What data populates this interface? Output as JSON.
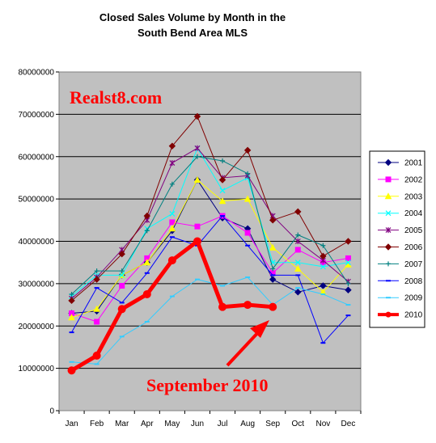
{
  "chart_data": {
    "type": "line",
    "title_line1": "Closed Sales Volume by Month in the",
    "title_line2": "South Bend Area MLS",
    "xlabel": "",
    "ylabel": "",
    "categories": [
      "Jan",
      "Feb",
      "Mar",
      "Apr",
      "May",
      "Jun",
      "Jul",
      "Aug",
      "Sep",
      "Oct",
      "Nov",
      "Dec"
    ],
    "y_ticks": [
      "0",
      "10000000",
      "20000000",
      "30000000",
      "40000000",
      "50000000",
      "60000000",
      "70000000",
      "80000000"
    ],
    "ylim": [
      0,
      80000000
    ],
    "grid": true,
    "legend_position": "right",
    "plot_background": "#c0c0c0",
    "watermark": "Realst8.com",
    "watermark_color": "#ff0000",
    "annotation": "September 2010",
    "annotation_color": "#ff0000",
    "series": [
      {
        "name": "2001",
        "color": "#000080",
        "marker": "diamond",
        "values": [
          23000000,
          23500000,
          32000000,
          35000000,
          42500000,
          54500000,
          45500000,
          43000000,
          31000000,
          28000000,
          29500000,
          28500000
        ]
      },
      {
        "name": "2002",
        "color": "#ff00ff",
        "marker": "square",
        "values": [
          23000000,
          21000000,
          29500000,
          36000000,
          44500000,
          43500000,
          46000000,
          42000000,
          32500000,
          38000000,
          35000000,
          36000000
        ]
      },
      {
        "name": "2003",
        "color": "#ffff00",
        "marker": "triangle",
        "values": [
          22000000,
          24000000,
          32000000,
          35000000,
          43000000,
          54500000,
          49500000,
          50000000,
          38500000,
          33500000,
          28000000,
          34500000
        ]
      },
      {
        "name": "2004",
        "color": "#00ffff",
        "marker": "x",
        "values": [
          27000000,
          32000000,
          32000000,
          43000000,
          46500000,
          62000000,
          52000000,
          55000000,
          35000000,
          35000000,
          34000000,
          35000000
        ]
      },
      {
        "name": "2005",
        "color": "#800080",
        "marker": "star",
        "values": [
          26500000,
          31500000,
          38000000,
          45000000,
          58500000,
          62000000,
          55000000,
          55500000,
          46000000,
          40000000,
          35500000,
          30500000
        ]
      },
      {
        "name": "2006",
        "color": "#800000",
        "marker": "diamond",
        "values": [
          26000000,
          31000000,
          37000000,
          46000000,
          62500000,
          69500000,
          54500000,
          61500000,
          45000000,
          47000000,
          36500000,
          40000000
        ]
      },
      {
        "name": "2007",
        "color": "#008080",
        "marker": "plus",
        "values": [
          27500000,
          33000000,
          33000000,
          42500000,
          53500000,
          60000000,
          59000000,
          56000000,
          33500000,
          41500000,
          39000000,
          30000000
        ]
      },
      {
        "name": "2008",
        "color": "#0000ff",
        "marker": "dash",
        "values": [
          18500000,
          29000000,
          25500000,
          32500000,
          41000000,
          39000000,
          46000000,
          39000000,
          32000000,
          32000000,
          16000000,
          22500000
        ]
      },
      {
        "name": "2009",
        "color": "#33ccff",
        "marker": "dash",
        "values": [
          11500000,
          11000000,
          17500000,
          21000000,
          27000000,
          31000000,
          29500000,
          31500000,
          25000000,
          29000000,
          27500000,
          25000000
        ]
      },
      {
        "name": "2010",
        "color": "#ff0000",
        "marker": "circle",
        "bold": true,
        "values": [
          9500000,
          13000000,
          24000000,
          27500000,
          35500000,
          40000000,
          24500000,
          25000000,
          24500000,
          null,
          null,
          null
        ]
      }
    ]
  }
}
